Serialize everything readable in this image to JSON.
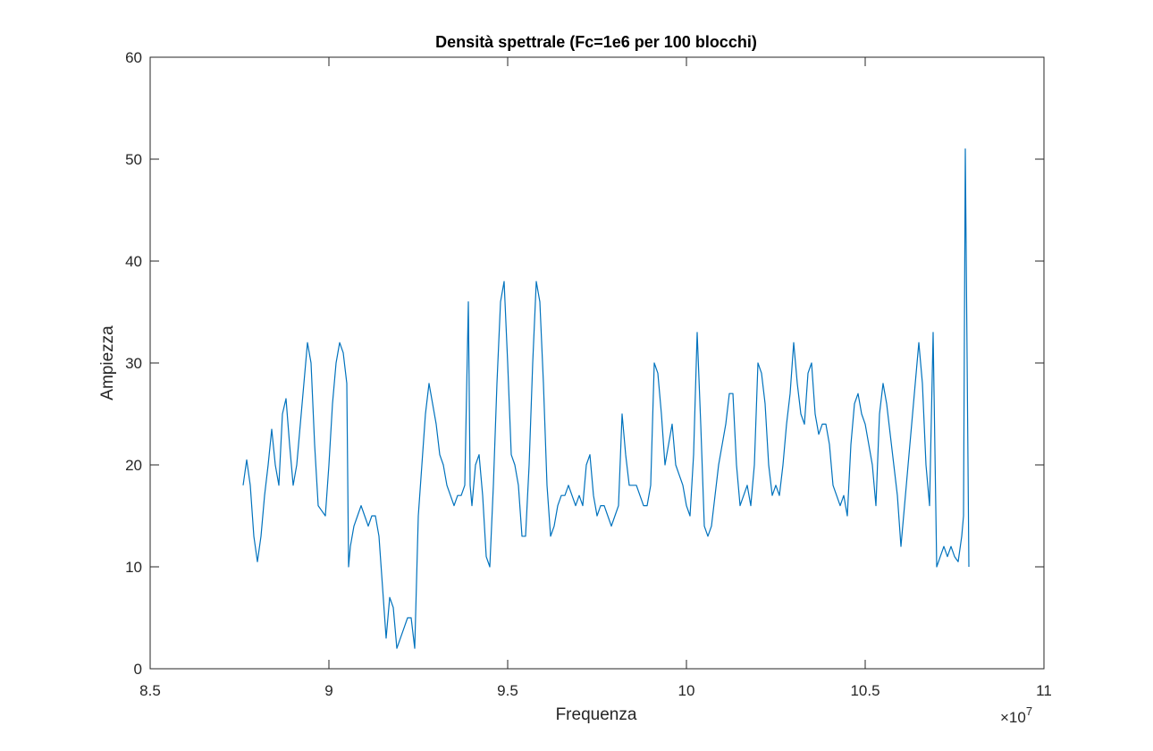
{
  "chart_data": {
    "type": "line",
    "title": "Densità spettrale (Fc=1e6 per 100 blocchi)",
    "xlabel": "Frequenza",
    "ylabel": "Ampiezza",
    "x_multiplier_base": "×10",
    "x_multiplier_exp": "7",
    "xlim": [
      8.5,
      11
    ],
    "ylim": [
      0,
      60
    ],
    "x_ticks": [
      "8.5",
      "9",
      "9.5",
      "10",
      "10.5",
      "11"
    ],
    "y_ticks": [
      "0",
      "10",
      "20",
      "30",
      "40",
      "50",
      "60"
    ],
    "x_tick_values": [
      8.5,
      9,
      9.5,
      10,
      10.5,
      11
    ],
    "y_tick_values": [
      0,
      10,
      20,
      30,
      40,
      50,
      60
    ],
    "line_color": "#0072BD",
    "grid": false,
    "series": [
      {
        "x": [
          8.76,
          8.77,
          8.78,
          8.79,
          8.8,
          8.81,
          8.82,
          8.83,
          8.84,
          8.85,
          8.86,
          8.87,
          8.88,
          8.89,
          8.9,
          8.91,
          8.92,
          8.93,
          8.94,
          8.95,
          8.96,
          8.97,
          8.98,
          8.99,
          9.0,
          9.01,
          9.02,
          9.03,
          9.04,
          9.05,
          9.055,
          9.06,
          9.07,
          9.08,
          9.09,
          9.1,
          9.11,
          9.12,
          9.13,
          9.14,
          9.15,
          9.16,
          9.17,
          9.18,
          9.19,
          9.2,
          9.21,
          9.22,
          9.23,
          9.24,
          9.25,
          9.26,
          9.27,
          9.28,
          9.29,
          9.3,
          9.31,
          9.32,
          9.33,
          9.34,
          9.35,
          9.36,
          9.37,
          9.38,
          9.39,
          9.395,
          9.4,
          9.41,
          9.42,
          9.43,
          9.44,
          9.45,
          9.46,
          9.47,
          9.48,
          9.49,
          9.5,
          9.51,
          9.52,
          9.53,
          9.54,
          9.55,
          9.56,
          9.57,
          9.58,
          9.59,
          9.6,
          9.61,
          9.62,
          9.63,
          9.64,
          9.65,
          9.66,
          9.67,
          9.68,
          9.69,
          9.7,
          9.71,
          9.72,
          9.73,
          9.74,
          9.75,
          9.76,
          9.77,
          9.78,
          9.79,
          9.8,
          9.81,
          9.82,
          9.83,
          9.84,
          9.85,
          9.86,
          9.87,
          9.88,
          9.89,
          9.9,
          9.91,
          9.92,
          9.93,
          9.94,
          9.95,
          9.96,
          9.97,
          9.98,
          9.99,
          10.0,
          10.01,
          10.02,
          10.03,
          10.04,
          10.05,
          10.06,
          10.07,
          10.08,
          10.09,
          10.1,
          10.11,
          10.12,
          10.13,
          10.14,
          10.15,
          10.16,
          10.17,
          10.18,
          10.19,
          10.2,
          10.21,
          10.22,
          10.23,
          10.24,
          10.25,
          10.26,
          10.27,
          10.28,
          10.29,
          10.3,
          10.31,
          10.32,
          10.33,
          10.34,
          10.35,
          10.36,
          10.37,
          10.38,
          10.39,
          10.4,
          10.41,
          10.42,
          10.43,
          10.44,
          10.45,
          10.46,
          10.47,
          10.48,
          10.49,
          10.5,
          10.51,
          10.52,
          10.53,
          10.54,
          10.55,
          10.56,
          10.57,
          10.58,
          10.59,
          10.6,
          10.61,
          10.62,
          10.63,
          10.64,
          10.65,
          10.66,
          10.67,
          10.68,
          10.69,
          10.7,
          10.71,
          10.72,
          10.73,
          10.74,
          10.75,
          10.76,
          10.77,
          10.775,
          10.78,
          10.79
        ],
        "y": [
          18,
          20.5,
          18,
          13,
          10.5,
          13,
          17,
          20,
          23.5,
          20,
          18,
          25,
          26.5,
          22,
          18,
          20,
          24,
          28,
          32,
          30,
          22,
          16,
          15.5,
          15,
          20,
          26,
          30,
          32,
          31,
          28,
          10,
          12,
          14,
          15,
          16,
          15,
          14,
          15,
          15,
          13,
          8,
          3,
          7,
          6,
          2,
          3,
          4,
          5,
          5,
          2,
          15,
          20,
          25,
          28,
          26,
          24,
          21,
          20,
          18,
          17,
          16,
          17,
          17,
          18,
          36,
          18,
          16,
          20,
          21,
          17,
          11,
          10,
          18,
          28,
          36,
          38,
          30,
          21,
          20,
          18,
          13,
          13,
          20,
          30,
          38,
          36,
          28,
          18,
          13,
          14,
          16,
          17,
          17,
          18,
          17,
          16,
          17,
          16,
          20,
          21,
          17,
          15,
          16,
          16,
          15,
          14,
          15,
          16,
          25,
          21,
          18,
          18,
          18,
          17,
          16,
          16,
          18,
          30,
          29,
          25,
          20,
          22,
          24,
          20,
          19,
          18,
          16,
          15,
          21,
          33,
          24,
          14,
          13,
          14,
          17,
          20,
          22,
          24,
          27,
          27,
          20,
          16,
          17,
          18,
          16,
          20,
          30,
          29,
          26,
          20,
          17,
          18,
          17,
          20,
          24,
          27,
          32,
          28,
          25,
          24,
          29,
          30,
          25,
          23,
          24,
          24,
          22,
          18,
          17,
          16,
          17,
          15,
          22,
          26,
          27,
          25,
          24,
          22,
          20,
          16,
          25,
          28,
          26,
          23,
          20,
          17,
          12,
          16,
          20,
          24,
          28,
          32,
          28,
          20,
          16,
          33,
          10,
          11,
          12,
          11,
          12,
          11,
          10.5,
          13,
          15,
          51,
          10
        ]
      }
    ]
  }
}
